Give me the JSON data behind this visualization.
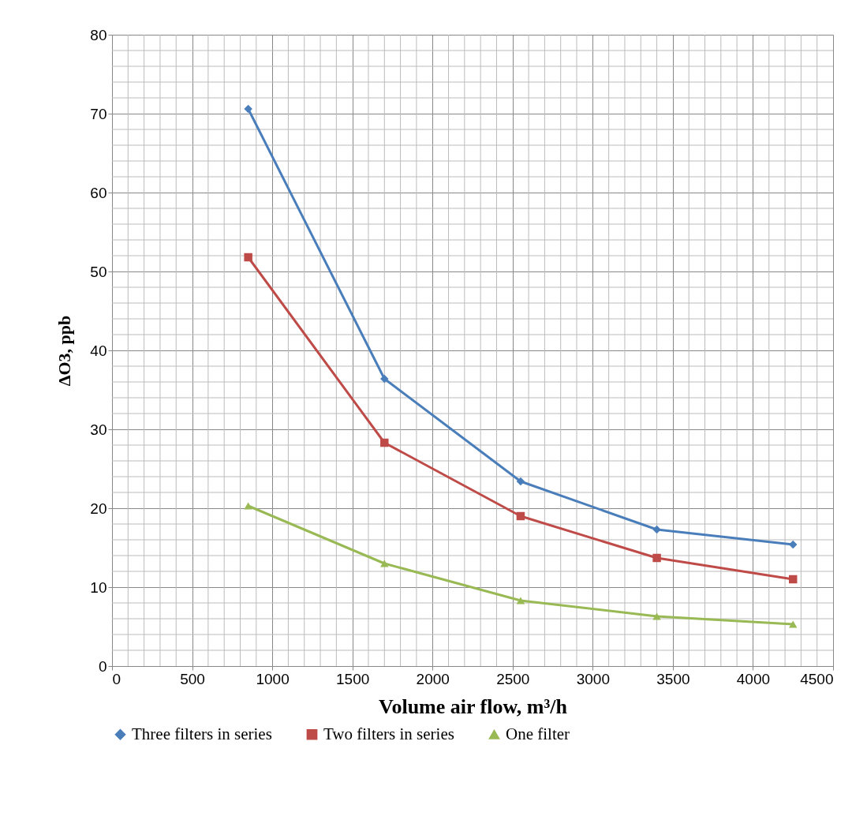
{
  "chart_data": {
    "type": "line",
    "xlabel": "Volume air flow, m³/h",
    "ylabel": "ΔO3, ppb",
    "x": [
      850,
      1700,
      2550,
      3400,
      4250
    ],
    "series": [
      {
        "name": "Three filters in series",
        "color": "#4a7ebb",
        "marker": "diamond",
        "values": [
          70.6,
          36.4,
          23.4,
          17.3,
          15.4
        ]
      },
      {
        "name": "Two filters in series",
        "color": "#be4b48",
        "marker": "square",
        "values": [
          51.8,
          28.3,
          19.0,
          13.7,
          11.0
        ]
      },
      {
        "name": "One filter",
        "color": "#98b954",
        "marker": "triangle",
        "values": [
          20.3,
          13.0,
          8.3,
          6.3,
          5.3
        ]
      }
    ],
    "xlim": [
      0,
      4500
    ],
    "xticks": [
      0,
      500,
      1000,
      1500,
      2000,
      2500,
      3000,
      3500,
      4000,
      4500
    ],
    "ylim": [
      0,
      80
    ],
    "yticks": [
      0,
      10,
      20,
      30,
      40,
      50,
      60,
      70,
      80
    ],
    "grid": true,
    "legend": "bottom",
    "line_style": "solid"
  }
}
